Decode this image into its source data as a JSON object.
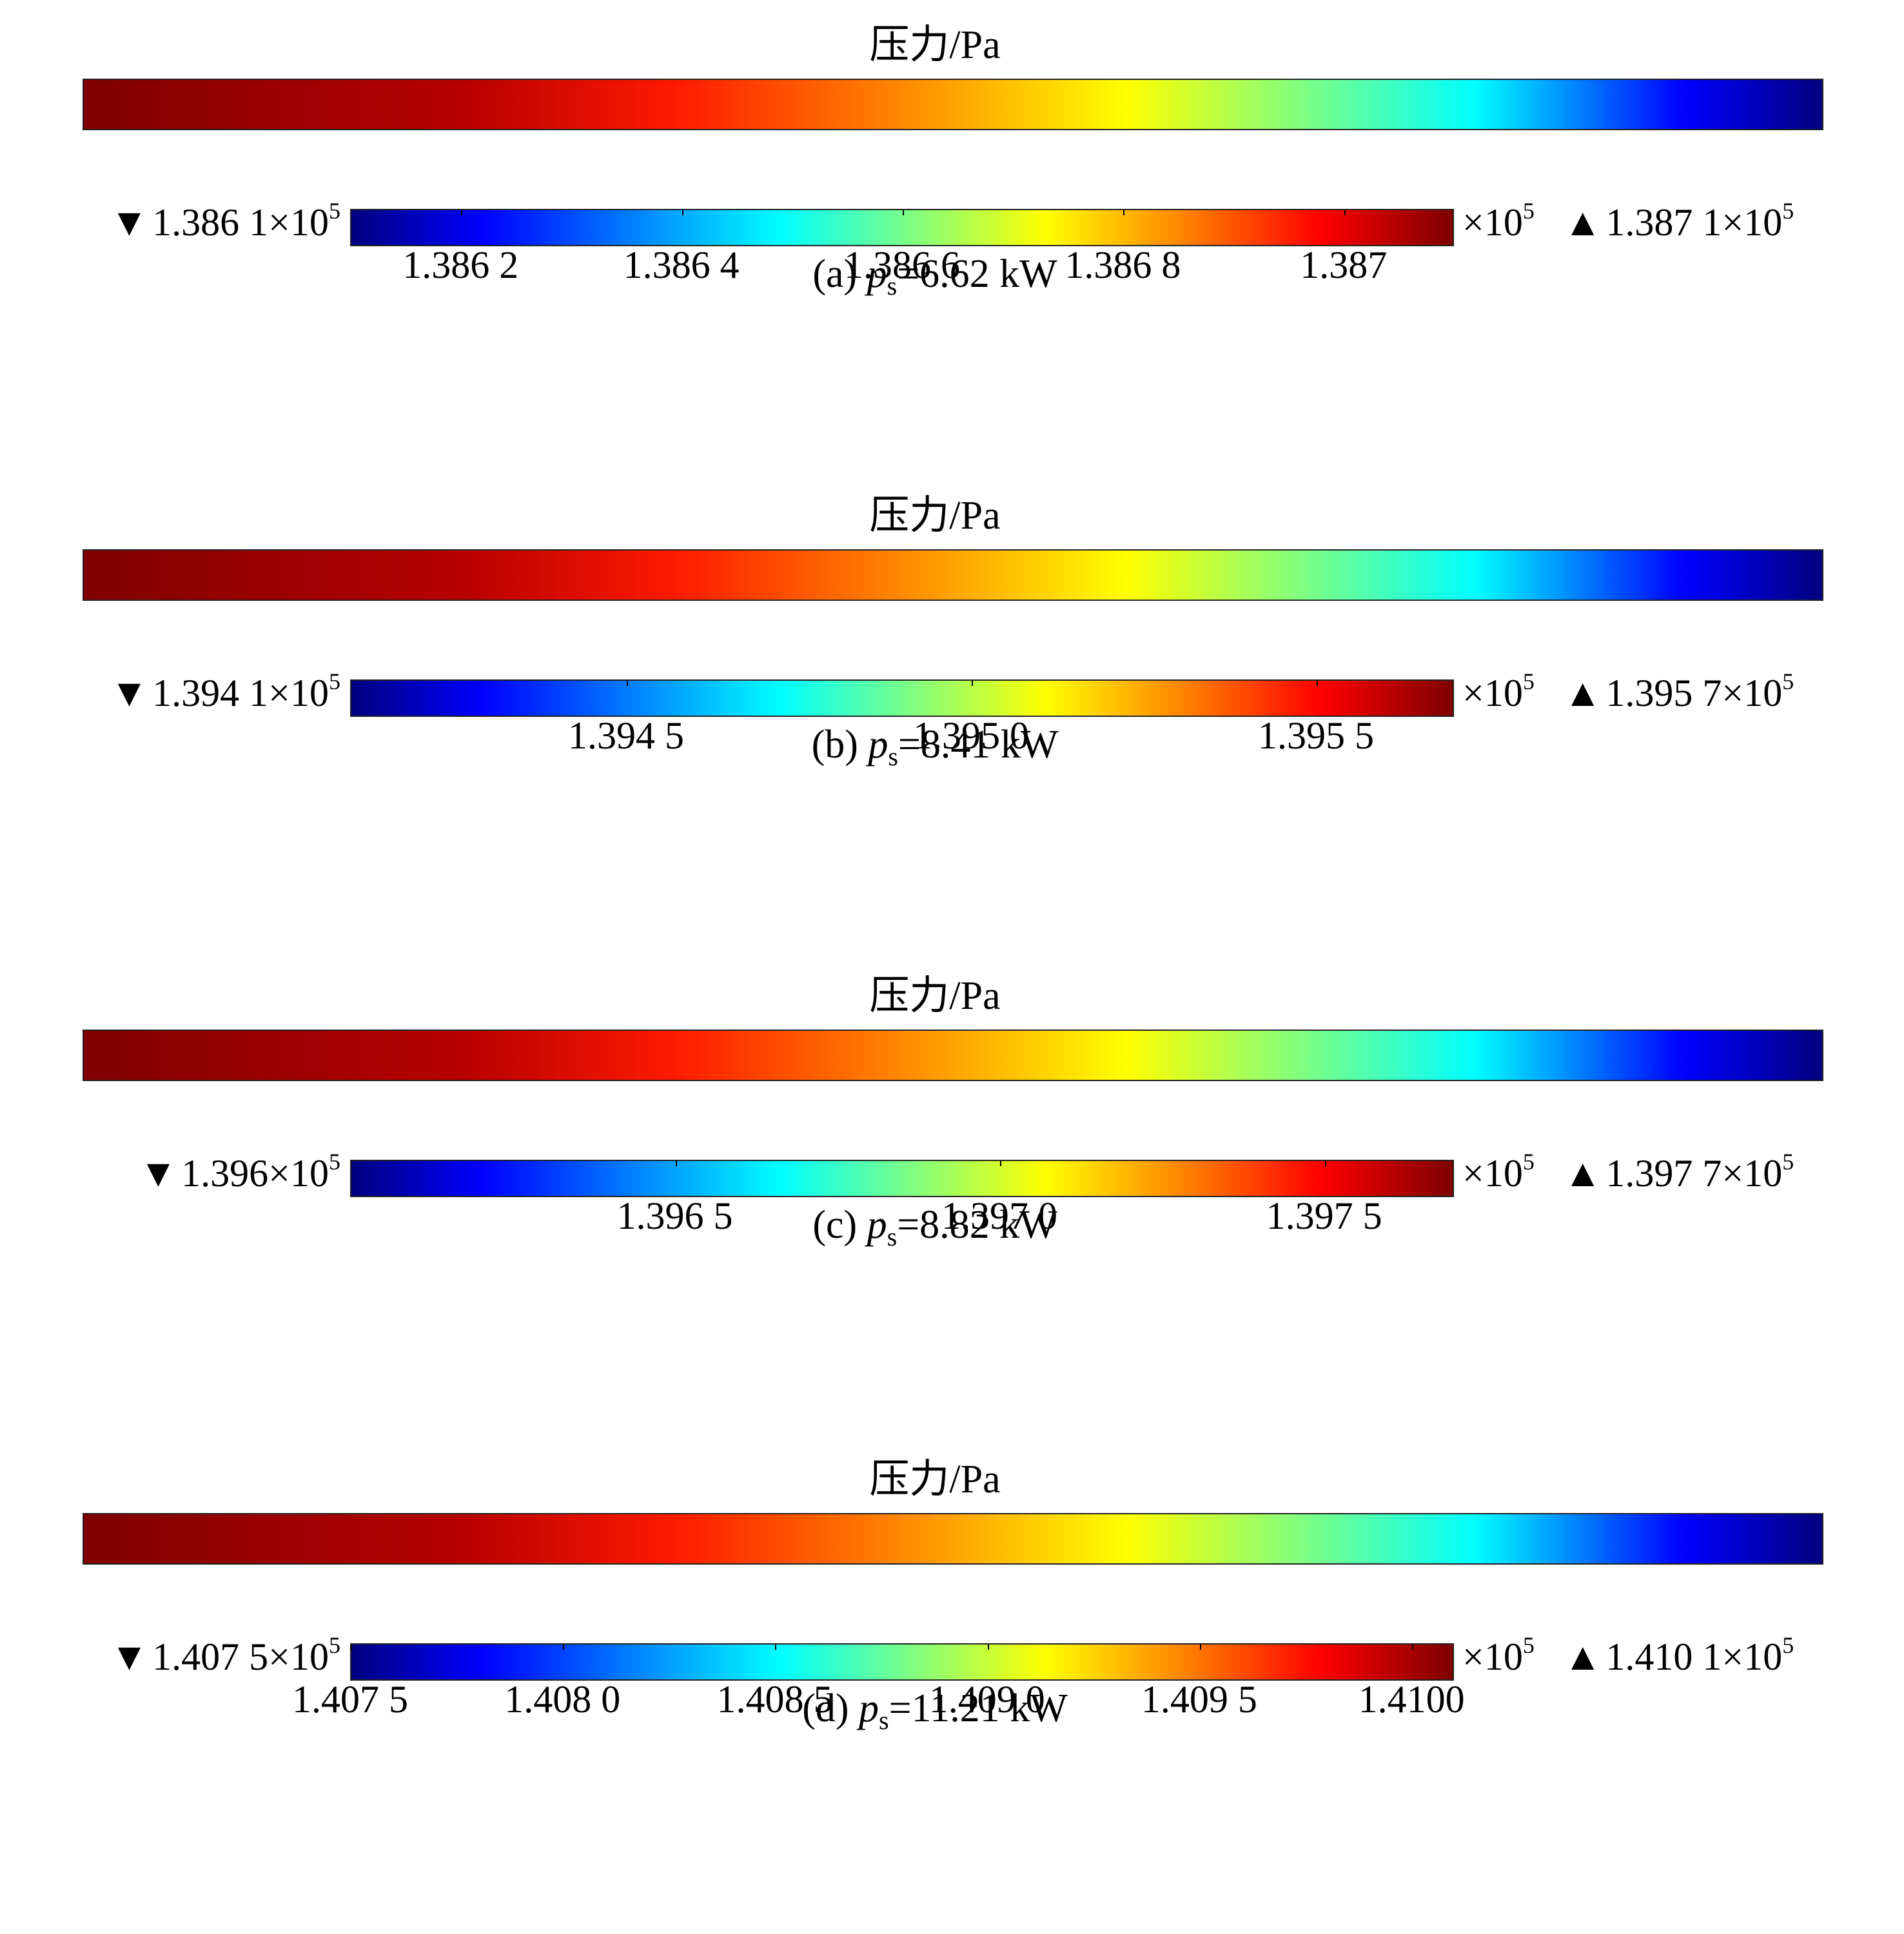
{
  "chart_data": [
    {
      "type": "heatmap",
      "title": "压力/Pa",
      "caption_prefix": "(a) ",
      "caption_var": "p",
      "caption_sub": "s",
      "caption_rest": "=6.62 kW",
      "min_text": "1.386 1×10",
      "max_text": "1.387 1×10",
      "multiplier": "×10",
      "exponent": "5",
      "colorbar_range": [
        1.3861,
        1.3871
      ],
      "ticks": [
        1.3862,
        1.3864,
        1.3866,
        1.3868,
        1.387
      ],
      "tick_labels": [
        "1.386 2",
        "1.386 4",
        "1.386 6",
        "1.386 8",
        "1.387"
      ],
      "colormap": "jet"
    },
    {
      "type": "heatmap",
      "title": "压力/Pa",
      "caption_prefix": "(b) ",
      "caption_var": "p",
      "caption_sub": "s",
      "caption_rest": "=8.41 kW",
      "min_text": "1.394 1×10",
      "max_text": "1.395 7×10",
      "multiplier": "×10",
      "exponent": "5",
      "colorbar_range": [
        1.3941,
        1.3957
      ],
      "ticks": [
        1.3945,
        1.395,
        1.3955
      ],
      "tick_labels": [
        "1.394 5",
        "1.395 0",
        "1.395 5"
      ],
      "colormap": "jet"
    },
    {
      "type": "heatmap",
      "title": "压力/Pa",
      "caption_prefix": "(c) ",
      "caption_var": "p",
      "caption_sub": "s",
      "caption_rest": "=8.82 kW",
      "min_text": "1.396×10",
      "max_text": "1.397 7×10",
      "multiplier": "×10",
      "exponent": "5",
      "colorbar_range": [
        1.396,
        1.3977
      ],
      "ticks": [
        1.3965,
        1.397,
        1.3975
      ],
      "tick_labels": [
        "1.396 5",
        "1.397 0",
        "1.397 5"
      ],
      "colormap": "jet"
    },
    {
      "type": "heatmap",
      "title": "压力/Pa",
      "caption_prefix": "(d) ",
      "caption_var": "p",
      "caption_sub": "s",
      "caption_rest": "=11.21 kW",
      "min_text": "1.407 5×10",
      "max_text": "1.410 1×10",
      "multiplier": "×10",
      "exponent": "5",
      "colorbar_range": [
        1.4075,
        1.4101
      ],
      "ticks": [
        1.4075,
        1.408,
        1.4085,
        1.409,
        1.4095,
        1.41
      ],
      "tick_labels": [
        "1.407 5",
        "1.408 0",
        "1.408 5",
        "1.409 0",
        "1.409 5",
        "1.4100"
      ],
      "colormap": "jet"
    }
  ],
  "markers": {
    "min": "▼",
    "max": "▲"
  },
  "colors": {
    "frame": "#222222",
    "text": "#000000",
    "background": "#ffffff"
  }
}
